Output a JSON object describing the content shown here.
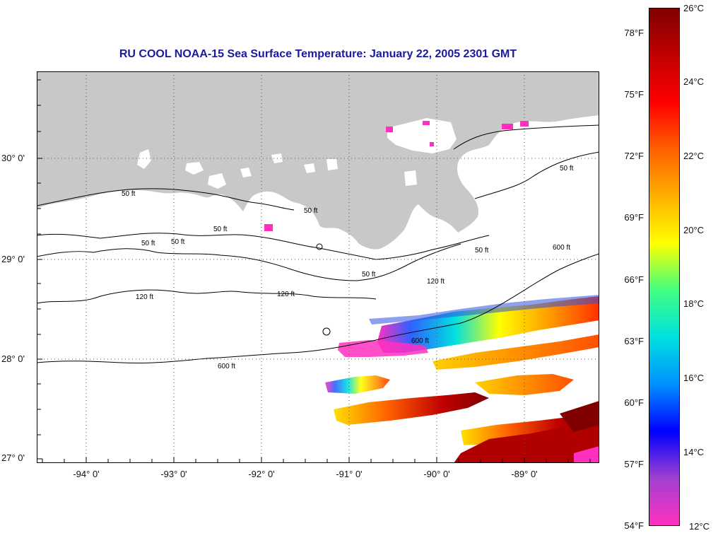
{
  "title": "RU COOL  NOAA-15  Sea Surface Temperature:  January 22, 2005 2301 GMT",
  "axes": {
    "lat_labels": [
      "30° 0'",
      "29° 0'",
      "28° 0'",
      "27° 0'"
    ],
    "lon_labels": [
      "-94° 0'",
      "-93° 0'",
      "-92° 0'",
      "-91° 0'",
      "-90° 0'",
      "-89° 0'"
    ],
    "lat_range": [
      26.98,
      30.85
    ],
    "lon_range": [
      -94.55,
      -88.1
    ]
  },
  "contours": {
    "labels": [
      "50 ft",
      "120 ft",
      "600 ft"
    ]
  },
  "colorbar": {
    "fahrenheit_labels": [
      "78°F",
      "75°F",
      "72°F",
      "69°F",
      "66°F",
      "63°F",
      "60°F",
      "57°F",
      "54°F"
    ],
    "celsius_labels": [
      "26°C",
      "24°C",
      "22°C",
      "20°C",
      "18°C",
      "16°C",
      "14°C",
      "12°C"
    ],
    "range_c": [
      12,
      26
    ],
    "colors": [
      "#ff30c0",
      "#a040d0",
      "#0000ff",
      "#0090ff",
      "#00e0e0",
      "#40ff80",
      "#ffff00",
      "#ffb000",
      "#ff6000",
      "#ff0000",
      "#c00000",
      "#800000"
    ]
  },
  "colors": {
    "land": "#c8c8c8",
    "title": "#1a1aa0",
    "contour": "#000000"
  }
}
